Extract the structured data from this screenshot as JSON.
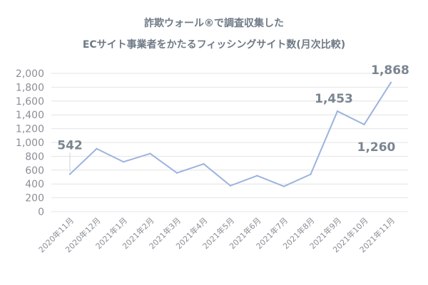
{
  "chart_data": {
    "type": "line",
    "title_lines": [
      "詐欺ウォール®で調査収集した",
      "ECサイト事業者をかたるフィッシングサイト数(月次比較)"
    ],
    "xlabel": "",
    "ylabel": "",
    "ylim": [
      0,
      2000
    ],
    "yticks": [
      "0",
      "200",
      "400",
      "600",
      "800",
      "1,000",
      "1,200",
      "1,400",
      "1,600",
      "1,800",
      "2,000"
    ],
    "grid": true,
    "categories": [
      "2020年11月",
      "2020年12月",
      "2021年1月",
      "2021年2月",
      "2021年3月",
      "2021年4月",
      "2021年5月",
      "2021年6月",
      "2021年7月",
      "2021年8月",
      "2021年9月",
      "2021年10月",
      "2021年11月"
    ],
    "series": [
      {
        "values": [
          542,
          910,
          720,
          840,
          560,
          690,
          375,
          520,
          365,
          540,
          1453,
          1260,
          1868
        ],
        "color": "#9db3df"
      }
    ],
    "data_labels": [
      {
        "index": 0,
        "text": "542"
      },
      {
        "index": 10,
        "text": "1,453"
      },
      {
        "index": 11,
        "text": "1,260"
      },
      {
        "index": 12,
        "text": "1,868"
      }
    ],
    "colors": {
      "title": "#6f7a86",
      "axis_text": "#8a8f96",
      "label_text": "#7a8591",
      "grid": "#e4e4e4",
      "line": "#9db3df"
    }
  }
}
